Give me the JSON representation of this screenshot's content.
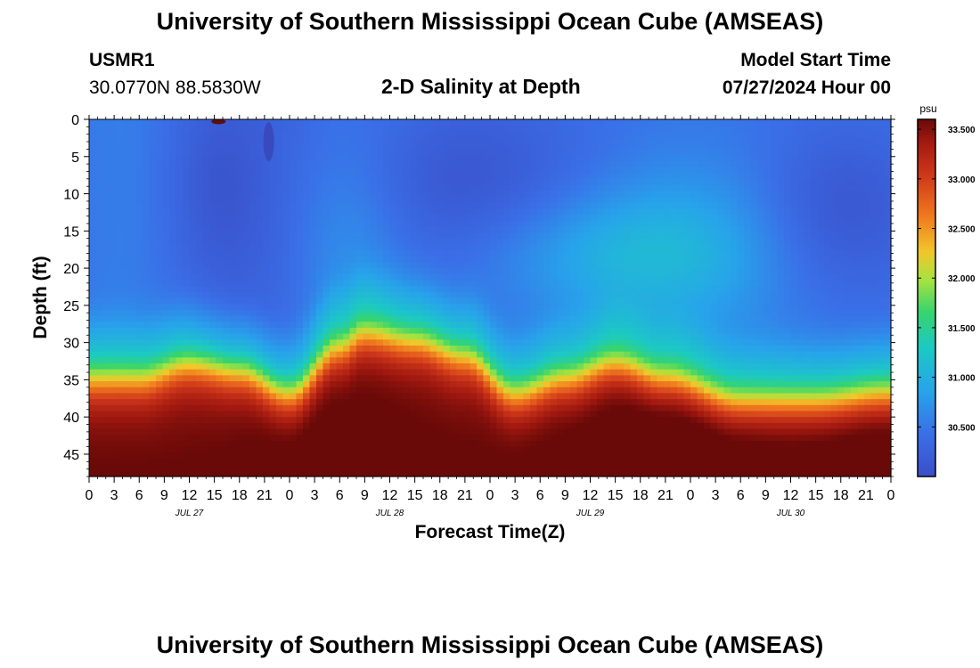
{
  "title": "University of Southern Mississippi Ocean Cube (AMSEAS)",
  "footer_title": "University of Southern Mississippi Ocean Cube (AMSEAS)",
  "station": {
    "id": "USMR1",
    "coords": "30.0770N  88.5830W"
  },
  "model": {
    "label": "Model Start Time",
    "start": "07/27/2024 Hour 00"
  },
  "chart_data": {
    "type": "heatmap",
    "title": "2-D Salinity at Depth",
    "xlabel": "Forecast Time(Z)",
    "ylabel": "Depth (ft)",
    "x_hours_range": [
      0,
      96
    ],
    "y_depth_range": [
      0,
      48
    ],
    "x_ticks": [
      "0",
      "3",
      "6",
      "9",
      "12",
      "15",
      "18",
      "21",
      "0",
      "3",
      "6",
      "9",
      "12",
      "15",
      "18",
      "21",
      "0",
      "3",
      "6",
      "9",
      "12",
      "15",
      "18",
      "21",
      "0",
      "3",
      "6",
      "9",
      "12",
      "15",
      "18",
      "21",
      "0"
    ],
    "y_ticks": [
      0,
      5,
      10,
      15,
      20,
      25,
      30,
      35,
      40,
      45
    ],
    "day_labels": [
      {
        "label": "JUL 27",
        "hour": 12
      },
      {
        "label": "JUL 28",
        "hour": 36
      },
      {
        "label": "JUL 29",
        "hour": 60
      },
      {
        "label": "JUL 30",
        "hour": 84
      }
    ],
    "colorbar": {
      "unit": "psu",
      "min": 30.0,
      "max": 33.6,
      "ticks": [
        "33.500",
        "33.000",
        "32.500",
        "32.000",
        "31.500",
        "31.000",
        "30.500"
      ]
    },
    "halocline_depth_ft": [
      {
        "hour": 0,
        "depth": 31
      },
      {
        "hour": 6,
        "depth": 31
      },
      {
        "hour": 12,
        "depth": 29
      },
      {
        "hour": 18,
        "depth": 30
      },
      {
        "hour": 24,
        "depth": 33
      },
      {
        "hour": 30,
        "depth": 27
      },
      {
        "hour": 33,
        "depth": 25
      },
      {
        "hour": 39,
        "depth": 26
      },
      {
        "hour": 45,
        "depth": 28
      },
      {
        "hour": 51,
        "depth": 33
      },
      {
        "hour": 57,
        "depth": 31
      },
      {
        "hour": 63,
        "depth": 29
      },
      {
        "hour": 69,
        "depth": 31
      },
      {
        "hour": 78,
        "depth": 34
      },
      {
        "hour": 87,
        "depth": 34
      },
      {
        "hour": 96,
        "depth": 33
      }
    ]
  }
}
